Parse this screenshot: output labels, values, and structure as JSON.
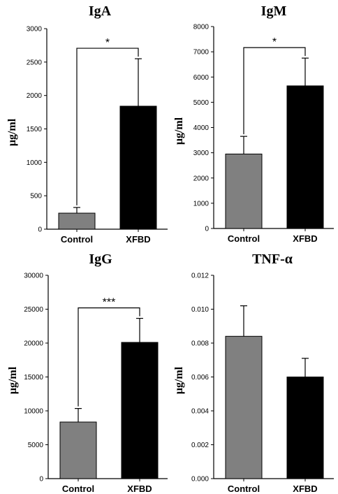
{
  "chart_data": [
    {
      "type": "bar",
      "title": "IgA",
      "ylabel": "μg/ml",
      "categories": [
        "Control",
        "XFBD"
      ],
      "values": [
        240,
        1840
      ],
      "errors": [
        85,
        710
      ],
      "ylim": [
        0,
        3000
      ],
      "yticks": [
        "0",
        "500",
        "1000",
        "1500",
        "2000",
        "2500",
        "3000"
      ],
      "bar_colors": [
        "#808080",
        "#000000"
      ],
      "significance": "*"
    },
    {
      "type": "bar",
      "title": "IgM",
      "ylabel": "μg/ml",
      "categories": [
        "Control",
        "XFBD"
      ],
      "values": [
        2950,
        5650
      ],
      "errors": [
        700,
        1100
      ],
      "ylim": [
        0,
        8000
      ],
      "yticks": [
        "0",
        "1000",
        "2000",
        "3000",
        "4000",
        "5000",
        "6000",
        "7000",
        "8000"
      ],
      "bar_colors": [
        "#808080",
        "#000000"
      ],
      "significance": "*"
    },
    {
      "type": "bar",
      "title": "IgG",
      "ylabel": "μg/ml",
      "categories": [
        "Control",
        "XFBD"
      ],
      "values": [
        8350,
        20100
      ],
      "errors": [
        2000,
        3550
      ],
      "ylim": [
        0,
        30000
      ],
      "yticks": [
        "0",
        "5000",
        "10000",
        "15000",
        "20000",
        "25000",
        "30000"
      ],
      "bar_colors": [
        "#808080",
        "#000000"
      ],
      "significance": "***"
    },
    {
      "type": "bar",
      "title": "TNF-α",
      "ylabel": "μg/ml",
      "categories": [
        "Control",
        "XFBD"
      ],
      "values": [
        0.0084,
        0.006
      ],
      "errors": [
        0.0018,
        0.0011
      ],
      "ylim": [
        0,
        0.012
      ],
      "yticks": [
        "0.000",
        "0.002",
        "0.004",
        "0.006",
        "0.008",
        "0.010",
        "0.012"
      ],
      "bar_colors": [
        "#808080",
        "#000000"
      ],
      "significance": ""
    }
  ]
}
